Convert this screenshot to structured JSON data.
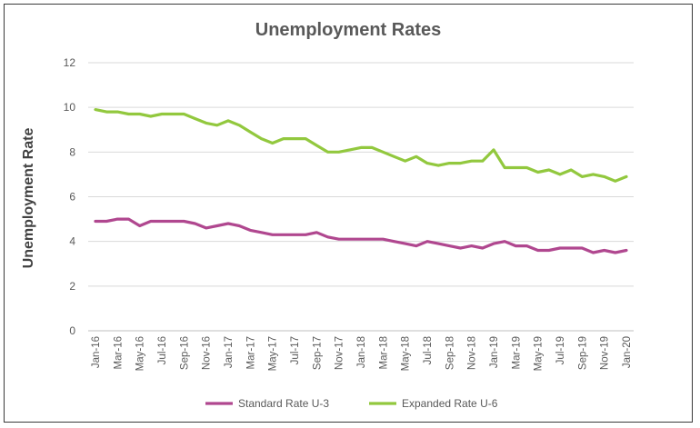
{
  "chart_data": {
    "type": "line",
    "title": "Unemployment Rates",
    "xlabel": "",
    "ylabel": "Unemployment Rate",
    "ylim": [
      0,
      12
    ],
    "yticks": [
      0,
      2,
      4,
      6,
      8,
      10,
      12
    ],
    "grid": true,
    "legend_position": "bottom",
    "x": [
      "Jan-16",
      "Feb-16",
      "Mar-16",
      "Apr-16",
      "May-16",
      "Jun-16",
      "Jul-16",
      "Aug-16",
      "Sep-16",
      "Oct-16",
      "Nov-16",
      "Dec-16",
      "Jan-17",
      "Feb-17",
      "Mar-17",
      "Apr-17",
      "May-17",
      "Jun-17",
      "Jul-17",
      "Aug-17",
      "Sep-17",
      "Oct-17",
      "Nov-17",
      "Dec-17",
      "Jan-18",
      "Feb-18",
      "Mar-18",
      "Apr-18",
      "May-18",
      "Jun-18",
      "Jul-18",
      "Aug-18",
      "Sep-18",
      "Oct-18",
      "Nov-18",
      "Dec-18",
      "Jan-19",
      "Feb-19",
      "Mar-19",
      "Apr-19",
      "May-19",
      "Jun-19",
      "Jul-19",
      "Aug-19",
      "Sep-19",
      "Oct-19",
      "Nov-19",
      "Dec-19",
      "Jan-20"
    ],
    "x_tick_labels": [
      "Jan-16",
      "Mar-16",
      "May-16",
      "Jul-16",
      "Sep-16",
      "Nov-16",
      "Jan-17",
      "Mar-17",
      "May-17",
      "Jul-17",
      "Sep-17",
      "Nov-17",
      "Jan-18",
      "Mar-18",
      "May-18",
      "Jul-18",
      "Sep-18",
      "Nov-18",
      "Jan-19",
      "Mar-19",
      "May-19",
      "Jul-19",
      "Sep-19",
      "Nov-19",
      "Jan-20"
    ],
    "series": [
      {
        "name": "Standard Rate U-3",
        "color": "#b0478f",
        "values": [
          4.9,
          4.9,
          5.0,
          5.0,
          4.7,
          4.9,
          4.9,
          4.9,
          4.9,
          4.8,
          4.6,
          4.7,
          4.8,
          4.7,
          4.5,
          4.4,
          4.3,
          4.3,
          4.3,
          4.3,
          4.4,
          4.2,
          4.1,
          4.1,
          4.1,
          4.1,
          4.1,
          4.0,
          3.9,
          3.8,
          4.0,
          3.9,
          3.8,
          3.7,
          3.8,
          3.7,
          3.9,
          4.0,
          3.8,
          3.8,
          3.6,
          3.6,
          3.7,
          3.7,
          3.7,
          3.5,
          3.6,
          3.5,
          3.6
        ]
      },
      {
        "name": "Expanded Rate U-6",
        "color": "#92c83e",
        "values": [
          9.9,
          9.8,
          9.8,
          9.7,
          9.7,
          9.6,
          9.7,
          9.7,
          9.7,
          9.5,
          9.3,
          9.2,
          9.4,
          9.2,
          8.9,
          8.6,
          8.4,
          8.6,
          8.6,
          8.6,
          8.3,
          8.0,
          8.0,
          8.1,
          8.2,
          8.2,
          8.0,
          7.8,
          7.6,
          7.8,
          7.5,
          7.4,
          7.5,
          7.5,
          7.6,
          7.6,
          8.1,
          7.3,
          7.3,
          7.3,
          7.1,
          7.2,
          7.0,
          7.2,
          6.9,
          7.0,
          6.9,
          6.7,
          6.9
        ]
      }
    ]
  }
}
